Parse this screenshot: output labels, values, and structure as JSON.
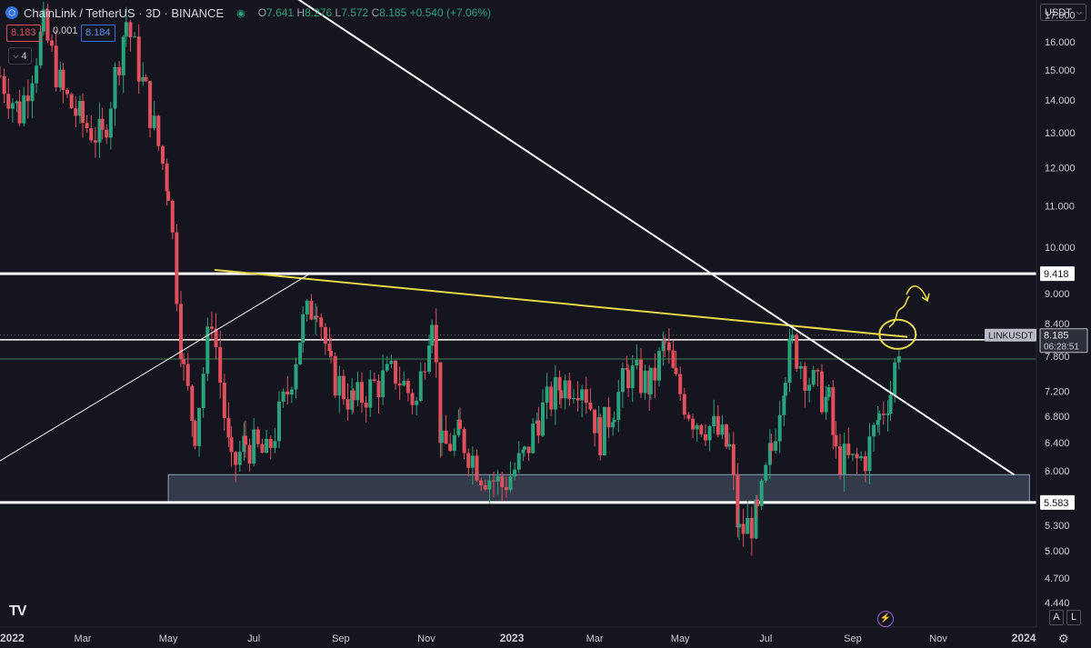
{
  "header": {
    "symbol_title": "ChainLink / TetherUS · 3D · BINANCE",
    "ohlc": {
      "open_label": "O",
      "open": "7.641",
      "high_label": "H",
      "high": "8.276",
      "low_label": "L",
      "low": "7.572",
      "close_label": "C",
      "close": "8.185",
      "change": "+0.540 (+7.06%)"
    },
    "sell_price": "8.183",
    "spread": "0.001",
    "buy_price": "8.184",
    "indicator_count": "4",
    "currency": "USDT"
  },
  "colors": {
    "background": "#14151f",
    "up": "#2aa37d",
    "down": "#e0505c",
    "trendline": "#e6d84a",
    "white_line": "#ffffff",
    "support_zone": "#4d5a6b"
  },
  "chart_data": {
    "type": "candlestick",
    "title": "ChainLink / TetherUS · 3D · BINANCE",
    "y_scale": "log",
    "ylim": [
      4.2,
      17.6
    ],
    "y_ticks": [
      "17.000",
      "16.000",
      "15.000",
      "14.000",
      "13.000",
      "12.000",
      "11.000",
      "10.000",
      "9.000",
      "8.400",
      "7.800",
      "7.200",
      "6.800",
      "6.400",
      "6.000",
      "5.300",
      "5.000",
      "4.700",
      "4.440"
    ],
    "x_ticks": [
      "2022",
      "Mar",
      "May",
      "Jul",
      "Sep",
      "Nov",
      "2023",
      "Mar",
      "May",
      "Jul",
      "Sep",
      "Nov",
      "2024"
    ],
    "x_tick_dates": [
      "2022-01-01",
      "2022-03-01",
      "2022-05-01",
      "2022-07-01",
      "2022-09-01",
      "2022-11-01",
      "2023-01-01",
      "2023-03-01",
      "2023-05-01",
      "2023-07-01",
      "2023-09-01",
      "2023-11-01",
      "2024-01-01"
    ],
    "xlim": [
      "2022-01-01",
      "2024-01-10"
    ],
    "price_path": [
      {
        "date": "2022-01-01",
        "price": 14.8
      },
      {
        "date": "2022-01-15",
        "price": 13.6
      },
      {
        "date": "2022-02-01",
        "price": 16.5
      },
      {
        "date": "2022-02-15",
        "price": 14.2
      },
      {
        "date": "2022-03-01",
        "price": 13.3
      },
      {
        "date": "2022-03-15",
        "price": 12.8
      },
      {
        "date": "2022-04-01",
        "price": 16.8
      },
      {
        "date": "2022-04-15",
        "price": 14.2
      },
      {
        "date": "2022-05-01",
        "price": 11.5
      },
      {
        "date": "2022-05-12",
        "price": 7.5
      },
      {
        "date": "2022-05-20",
        "price": 6.6
      },
      {
        "date": "2022-06-01",
        "price": 8.6
      },
      {
        "date": "2022-06-15",
        "price": 6.0
      },
      {
        "date": "2022-06-25",
        "price": 6.4
      },
      {
        "date": "2022-07-10",
        "price": 6.2
      },
      {
        "date": "2022-07-25",
        "price": 7.2
      },
      {
        "date": "2022-08-05",
        "price": 8.4
      },
      {
        "date": "2022-08-15",
        "price": 8.9
      },
      {
        "date": "2022-08-25",
        "price": 7.5
      },
      {
        "date": "2022-09-10",
        "price": 7.0
      },
      {
        "date": "2022-09-25",
        "price": 7.3
      },
      {
        "date": "2022-10-10",
        "price": 7.5
      },
      {
        "date": "2022-10-25",
        "price": 7.0
      },
      {
        "date": "2022-11-05",
        "price": 8.7
      },
      {
        "date": "2022-11-12",
        "price": 6.3
      },
      {
        "date": "2022-11-25",
        "price": 6.5
      },
      {
        "date": "2022-12-10",
        "price": 6.0
      },
      {
        "date": "2022-12-25",
        "price": 5.8
      },
      {
        "date": "2023-01-10",
        "price": 6.2
      },
      {
        "date": "2023-01-20",
        "price": 6.8
      },
      {
        "date": "2023-02-05",
        "price": 7.3
      },
      {
        "date": "2023-02-20",
        "price": 7.4
      },
      {
        "date": "2023-03-05",
        "price": 6.5
      },
      {
        "date": "2023-03-15",
        "price": 7.0
      },
      {
        "date": "2023-03-25",
        "price": 7.5
      },
      {
        "date": "2023-04-10",
        "price": 7.3
      },
      {
        "date": "2023-04-20",
        "price": 8.0
      },
      {
        "date": "2023-04-28",
        "price": 7.3
      },
      {
        "date": "2023-05-10",
        "price": 6.8
      },
      {
        "date": "2023-05-25",
        "price": 6.6
      },
      {
        "date": "2023-06-05",
        "price": 6.3
      },
      {
        "date": "2023-06-12",
        "price": 5.2
      },
      {
        "date": "2023-06-25",
        "price": 5.4
      },
      {
        "date": "2023-07-05",
        "price": 6.3
      },
      {
        "date": "2023-07-15",
        "price": 7.6
      },
      {
        "date": "2023-07-20",
        "price": 8.0
      },
      {
        "date": "2023-08-01",
        "price": 7.4
      },
      {
        "date": "2023-08-15",
        "price": 7.0
      },
      {
        "date": "2023-08-20",
        "price": 6.2
      },
      {
        "date": "2023-09-01",
        "price": 6.1
      },
      {
        "date": "2023-09-10",
        "price": 6.2
      },
      {
        "date": "2023-09-20",
        "price": 6.8
      },
      {
        "date": "2023-09-28",
        "price": 7.2
      },
      {
        "date": "2023-10-05",
        "price": 8.185
      }
    ],
    "horizontal_lines": [
      {
        "label": "9.418",
        "price": 9.418,
        "color": "#ffffff",
        "width": 3
      },
      {
        "label": "8.097",
        "price": 8.097,
        "color": "#ffffff",
        "width": 1.5
      },
      {
        "label": "5.583",
        "price": 5.583,
        "color": "#ffffff",
        "width": 3
      },
      {
        "price": 7.75,
        "color": "#3f7a52",
        "width": 1
      }
    ],
    "support_zone": {
      "low": 5.583,
      "high": 5.95,
      "start": "2022-05-01",
      "end": "2024-01-05"
    },
    "trendlines": [
      {
        "color": "#e6d84a",
        "start": {
          "date": "2022-06-03",
          "price": 9.5
        },
        "end": {
          "date": "2023-10-10",
          "price": 8.15
        },
        "width": 2
      },
      {
        "color": "#ffffff",
        "start": {
          "date": "2022-07-10",
          "price": 18.5
        },
        "end": {
          "date": "2023-12-25",
          "price": 5.95
        },
        "width": 2
      },
      {
        "color": "#ffffff",
        "start": {
          "date": "2021-12-20",
          "price": 6.0
        },
        "end": {
          "date": "2022-08-10",
          "price": 9.42
        },
        "width": 1
      }
    ],
    "last_price_label": {
      "symbol": "LINKUSDT",
      "price": "8.185",
      "countdown": "06:28:51"
    },
    "annotations": [
      {
        "type": "circle",
        "date": "2023-10-03",
        "price": 8.2,
        "color": "#e6d84a"
      },
      {
        "type": "arrow",
        "color": "#e6d84a"
      }
    ]
  },
  "footer": {
    "logo_text": "TV",
    "auto_label": "A",
    "log_label": "L"
  }
}
